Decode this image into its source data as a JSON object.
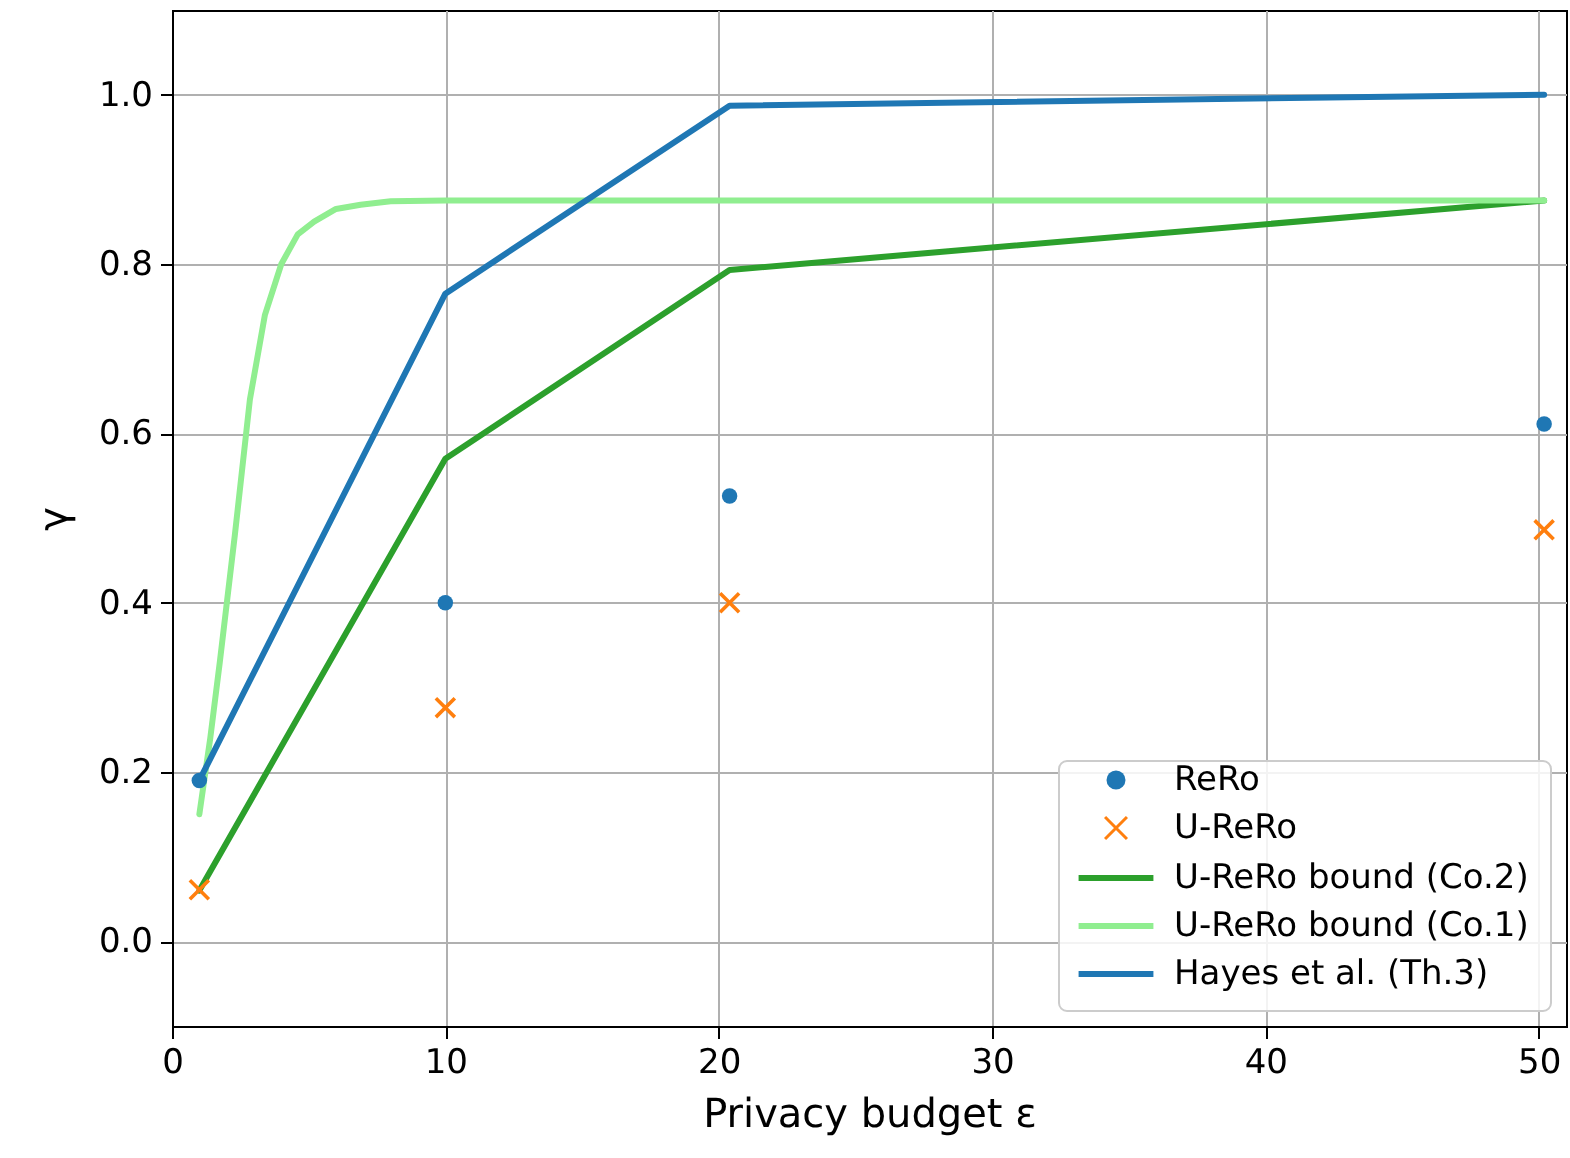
{
  "chart_data": {
    "type": "line",
    "xlabel": "Privacy budget ε",
    "ylabel": "γ",
    "xlim": [
      0,
      51
    ],
    "ylim": [
      -0.1,
      1.1
    ],
    "xticks": [
      0,
      10,
      20,
      30,
      40,
      50
    ],
    "yticks": [
      {
        "value": 0,
        "label": "0.0"
      },
      {
        "value": 0.2,
        "label": "0.2"
      },
      {
        "value": 0.4,
        "label": "0.4"
      },
      {
        "value": 0.6,
        "label": "0.6"
      },
      {
        "value": 0.8,
        "label": "0.8"
      },
      {
        "value": 1,
        "label": "1.0"
      }
    ],
    "grid": true,
    "legend": "bottom right",
    "series": [
      {
        "name": "ReRo",
        "type": "scatter",
        "marker": "circle",
        "color": "#1f77b4",
        "x": [
          1,
          10,
          20.4,
          50.2
        ],
        "values": [
          0.19,
          0.4,
          0.526,
          0.611
        ]
      },
      {
        "name": "U-ReRo",
        "type": "scatter",
        "marker": "cross",
        "color": "#ff7f0e",
        "x": [
          1,
          10,
          20.4,
          50.2
        ],
        "values": [
          0.061,
          0.276,
          0.4,
          0.486
        ]
      },
      {
        "name": "U-ReRo bound (Co.2)",
        "color": "#2ca02c",
        "x": [
          1,
          10,
          20.4,
          50.2
        ],
        "values": [
          0.06,
          0.57,
          0.793,
          0.875
        ]
      },
      {
        "name": "U-ReRo bound (Co.1)",
        "color": "#90ee90",
        "x": [
          1,
          1.4,
          1.75,
          2.3,
          2.85,
          3.4,
          4,
          4.6,
          5.2,
          6,
          6.9,
          8,
          10,
          50.2
        ],
        "values": [
          0.15,
          0.24,
          0.33,
          0.48,
          0.64,
          0.74,
          0.8,
          0.835,
          0.85,
          0.865,
          0.87,
          0.874,
          0.875,
          0.875
        ]
      },
      {
        "name": "Hayes et al. (Th.3)",
        "color": "#1f77b4",
        "x": [
          1,
          10,
          20.4,
          50.2
        ],
        "values": [
          0.19,
          0.765,
          0.987,
          1.0
        ]
      }
    ]
  }
}
